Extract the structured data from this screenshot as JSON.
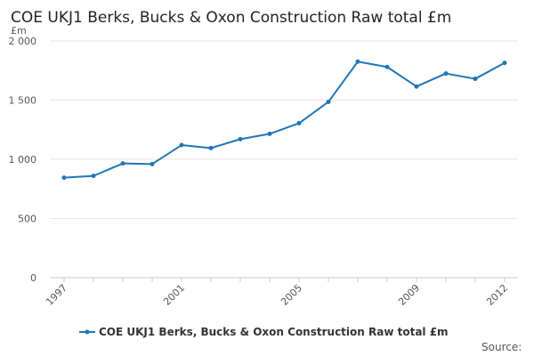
{
  "chart_data": {
    "type": "line",
    "title": "COE UKJ1 Berks, Bucks & Oxon Construction Raw total £m",
    "unit_label": "£m",
    "x": [
      "1997",
      "1998",
      "1999",
      "2000",
      "2001",
      "2002",
      "2003",
      "2004",
      "2005",
      "2006",
      "2007",
      "2008",
      "2009",
      "2010",
      "2011",
      "2012"
    ],
    "x_tick_labels": [
      "1997",
      "2001",
      "2005",
      "2009",
      "2012"
    ],
    "y_ticks": [
      0,
      500,
      1000,
      1500,
      2000
    ],
    "y_tick_labels": [
      "0",
      "500",
      "1 000",
      "1 500",
      "2 000"
    ],
    "ylim": [
      0,
      2000
    ],
    "grid": true,
    "legend_position": "bottom",
    "series": [
      {
        "name": "COE UKJ1 Berks, Bucks & Oxon Construction Raw total £m",
        "color": "#1f77b4",
        "values": [
          845,
          860,
          965,
          960,
          1120,
          1095,
          1170,
          1215,
          1305,
          1485,
          1825,
          1780,
          1615,
          1725,
          1680,
          1815
        ]
      }
    ],
    "source_label": "Source:"
  }
}
